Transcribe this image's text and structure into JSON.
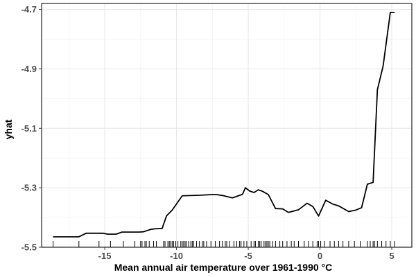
{
  "chart_data": {
    "type": "line",
    "title": "",
    "xlabel": "Mean annual air temperature over 1961-1990 °C",
    "ylabel": "yhat",
    "xlim": [
      -19.4,
      6.4
    ],
    "ylim": [
      -5.5,
      -4.68
    ],
    "x_ticks": [
      -15,
      -10,
      -5,
      0,
      5
    ],
    "x_tick_labels": [
      "-15",
      "-10",
      "-5",
      "0",
      "5"
    ],
    "x_minor_ticks": [
      -17.5,
      -12.5,
      -7.5,
      -2.5,
      2.5
    ],
    "y_ticks": [
      -5.5,
      -5.3,
      -5.1,
      -4.9,
      -4.7
    ],
    "y_tick_labels": [
      "-5.5",
      "-5.3",
      "-5.1",
      "-4.9",
      "-4.7"
    ],
    "y_minor_ticks": [
      -5.4,
      -5.2,
      -5.0,
      -4.8
    ],
    "grid": true,
    "legend": "none",
    "series": [
      {
        "x": [
          -18.6,
          -16.8,
          -16.3,
          -15.1,
          -14.8,
          -14.2,
          -13.8,
          -12.6,
          -12.3,
          -11.8,
          -11.5,
          -11.0,
          -10.7,
          -10.3,
          -9.6,
          -8.3,
          -7.6,
          -7.2,
          -6.8,
          -6.1,
          -5.4,
          -5.2,
          -4.9,
          -4.6,
          -4.3,
          -4.0,
          -3.6,
          -3.1,
          -2.6,
          -2.2,
          -1.5,
          -0.9,
          -0.5,
          -0.1,
          0.4,
          0.9,
          1.3,
          2.0,
          2.5,
          2.9,
          3.3,
          3.7,
          4.0,
          4.4,
          4.9,
          5.2
        ],
        "y": [
          -5.465,
          -5.465,
          -5.453,
          -5.453,
          -5.456,
          -5.456,
          -5.449,
          -5.449,
          -5.448,
          -5.44,
          -5.438,
          -5.437,
          -5.395,
          -5.375,
          -5.327,
          -5.325,
          -5.323,
          -5.323,
          -5.326,
          -5.334,
          -5.322,
          -5.3,
          -5.311,
          -5.316,
          -5.307,
          -5.312,
          -5.323,
          -5.37,
          -5.371,
          -5.383,
          -5.374,
          -5.352,
          -5.363,
          -5.395,
          -5.342,
          -5.355,
          -5.361,
          -5.38,
          -5.375,
          -5.367,
          -5.288,
          -5.282,
          -4.97,
          -4.89,
          -4.71,
          -4.71
        ]
      }
    ],
    "rug_x": [
      -18.6,
      -16.8,
      -15.4,
      -14.6,
      -13.7,
      -12.9,
      -12.5,
      -12.4,
      -12.2,
      -12.1,
      -11.9,
      -11.6,
      -11.4,
      -10.9,
      -10.8,
      -10.6,
      -10.5,
      -10.4,
      -10.3,
      -10.2,
      -10.05,
      -9.9,
      -9.7,
      -9.6,
      -9.5,
      -9.4,
      -9.3,
      -9.15,
      -9.0,
      -8.9,
      -8.8,
      -8.6,
      -8.4,
      -8.2,
      -8.1,
      -7.9,
      -7.6,
      -7.3,
      -7.0,
      -6.8,
      -6.6,
      -6.5,
      -6.3,
      -6.0,
      -5.8,
      -5.6,
      -5.5,
      -5.3,
      -5.1,
      -4.8,
      -4.6,
      -4.5,
      -4.3,
      -4.2,
      -4.1,
      -3.9,
      -3.8,
      -3.7,
      -3.6,
      -3.5,
      -3.3,
      -3.1,
      -2.8,
      -2.6,
      -2.3,
      -2.0,
      -1.8,
      -1.5,
      -1.1,
      -0.8,
      -0.5,
      -0.2,
      -0.1,
      0.05,
      0.3,
      0.7,
      1.0,
      1.3,
      1.6,
      2.0,
      2.4,
      2.8,
      3.3,
      3.5,
      3.7,
      3.8,
      4.0,
      4.3,
      4.6,
      4.9,
      5.2
    ]
  }
}
